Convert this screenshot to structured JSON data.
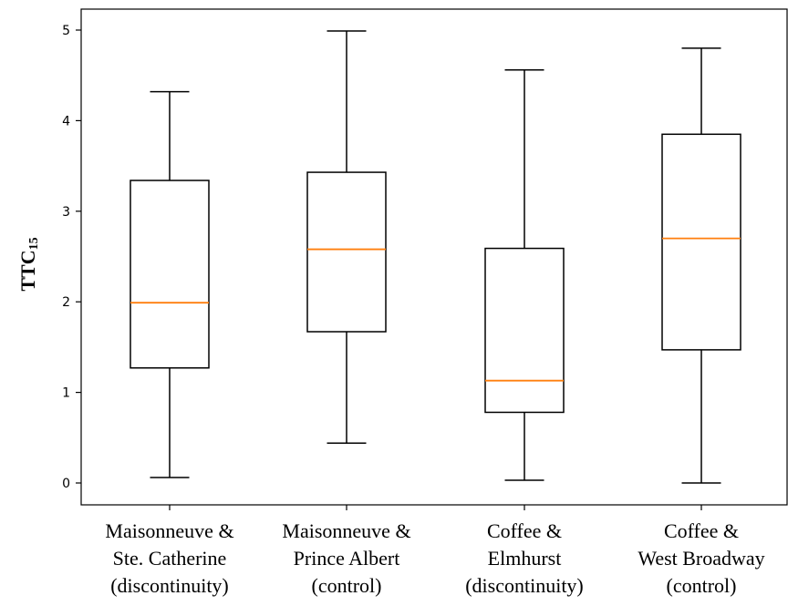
{
  "chart_data": {
    "type": "box",
    "ylabel_main": "TTC",
    "ylabel_sub": "15",
    "ylim": [
      -0.25,
      5.25
    ],
    "yticks": [
      "0",
      "1",
      "2",
      "3",
      "4",
      "5"
    ],
    "grid": false,
    "colors": {
      "box": "#000000",
      "median": "#ff7f0e"
    },
    "categories": [
      {
        "lines": [
          "Maisonneuve &",
          "Ste. Catherine",
          "(discontinuity)"
        ]
      },
      {
        "lines": [
          "Maisonneuve &",
          "Prince Albert",
          "(control)"
        ]
      },
      {
        "lines": [
          "Coffee &",
          "Elmhurst",
          "(discontinuity)"
        ]
      },
      {
        "lines": [
          "Coffee &",
          "West Broadway",
          "(control)"
        ]
      }
    ],
    "boxes": [
      {
        "min": 0.06,
        "q1": 1.27,
        "median": 1.99,
        "q3": 3.34,
        "max": 4.32
      },
      {
        "min": 0.44,
        "q1": 1.67,
        "median": 2.58,
        "q3": 3.43,
        "max": 4.99
      },
      {
        "min": 0.03,
        "q1": 0.78,
        "median": 1.13,
        "q3": 2.59,
        "max": 4.56
      },
      {
        "min": 0.0,
        "q1": 1.47,
        "median": 2.7,
        "q3": 3.85,
        "max": 4.8
      }
    ]
  }
}
